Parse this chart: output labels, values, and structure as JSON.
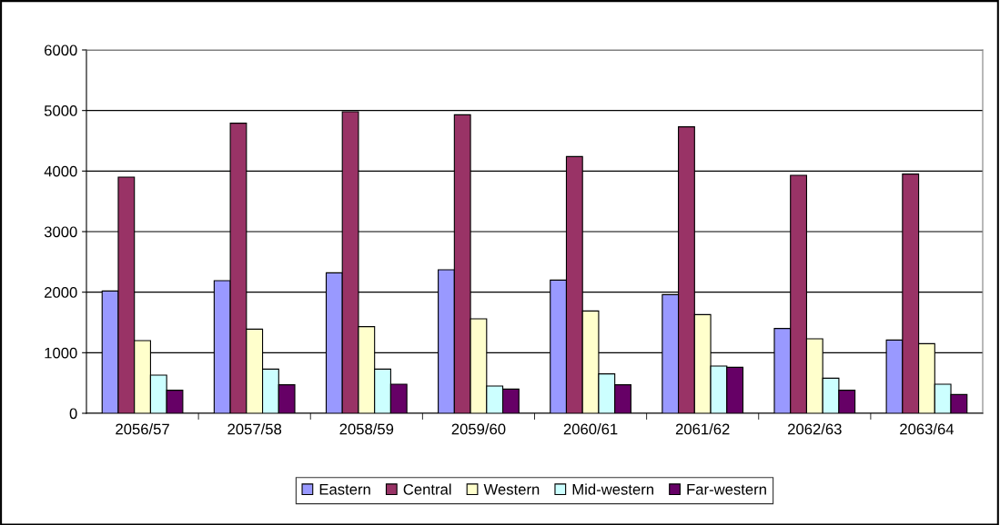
{
  "chart_data": {
    "type": "bar",
    "categories": [
      "2056/57",
      "2057/58",
      "2058/59",
      "2059/60",
      "2060/61",
      "2061/62",
      "2062/63",
      "2063/64"
    ],
    "series": [
      {
        "name": "Eastern",
        "color": "#9999ff",
        "values": [
          2020,
          2190,
          2320,
          2370,
          2200,
          1960,
          1400,
          1210
        ]
      },
      {
        "name": "Central",
        "color": "#993366",
        "values": [
          3900,
          4790,
          4980,
          4930,
          4240,
          4730,
          3930,
          3950
        ]
      },
      {
        "name": "Western",
        "color": "#ffffcc",
        "values": [
          1200,
          1390,
          1430,
          1560,
          1690,
          1630,
          1230,
          1150
        ]
      },
      {
        "name": "Mid-western",
        "color": "#ccffff",
        "values": [
          630,
          730,
          730,
          450,
          650,
          780,
          580,
          480
        ]
      },
      {
        "name": "Far-western",
        "color": "#660066",
        "values": [
          380,
          470,
          480,
          400,
          470,
          760,
          380,
          310
        ]
      }
    ],
    "ylim": [
      0,
      6000
    ],
    "yticks": [
      0,
      1000,
      2000,
      3000,
      4000,
      5000,
      6000
    ],
    "grid": "y",
    "legend": "bottom"
  }
}
